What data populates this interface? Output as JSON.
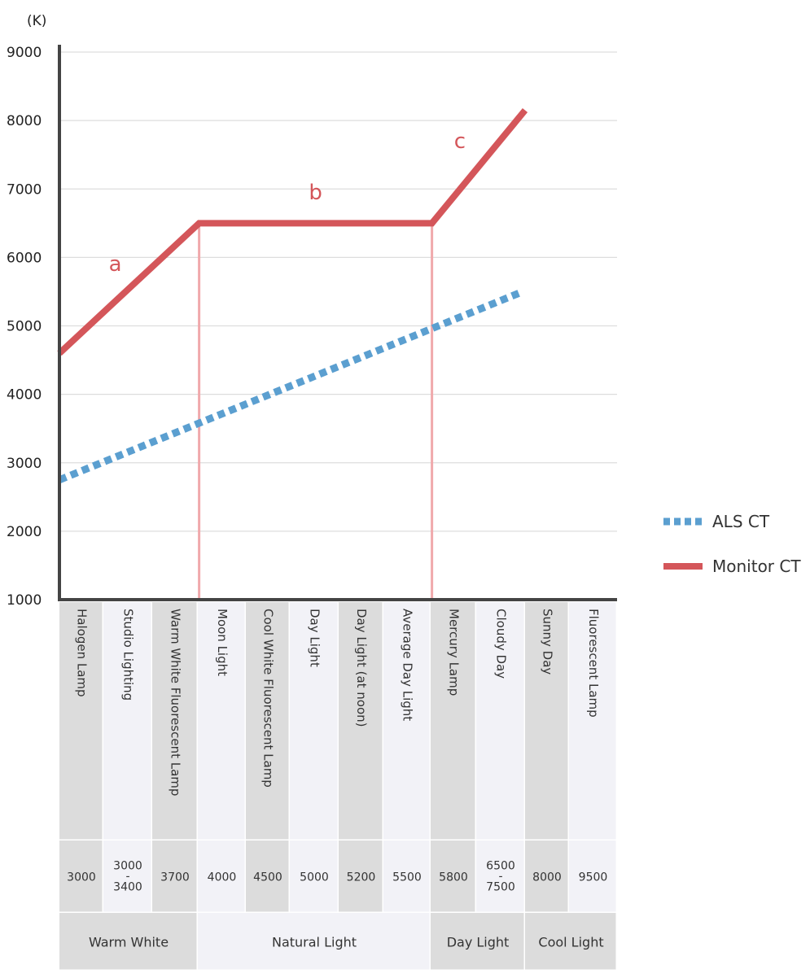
{
  "chart_data": {
    "type": "line",
    "y_unit": "(K)",
    "ylim": [
      1000,
      9000
    ],
    "yticks": [
      1000,
      2000,
      3000,
      4000,
      5000,
      6000,
      7000,
      8000,
      9000
    ],
    "grid": true,
    "legend_position": "right",
    "series": [
      {
        "name": "ALS CT",
        "style": "dotted",
        "color": "#5b9fd0",
        "points": [
          [
            0,
            2750
          ],
          [
            9.95,
            5500
          ]
        ]
      },
      {
        "name": "Monitor CT",
        "style": "solid",
        "color": "#d4565a",
        "points": [
          [
            0,
            4600
          ],
          [
            3,
            6500
          ],
          [
            8,
            6500
          ],
          [
            10,
            8150
          ]
        ]
      }
    ],
    "segment_labels": [
      {
        "text": "a",
        "x": 1.2,
        "y": 5800
      },
      {
        "text": "b",
        "x": 5.5,
        "y": 6850
      },
      {
        "text": "c",
        "x": 8.6,
        "y": 7600
      }
    ],
    "reference_lines": [
      3,
      8
    ],
    "light_sources": [
      {
        "name": "Halogen Lamp",
        "temp": [
          "3000"
        ]
      },
      {
        "name": "Studio Lighting",
        "temp": [
          "3000",
          "-",
          "3400"
        ]
      },
      {
        "name": "Warm White Fluorescent Lamp",
        "temp": [
          "3700"
        ]
      },
      {
        "name": "Moon Light",
        "temp": [
          "4000"
        ]
      },
      {
        "name": "Cool White Fluorescent Lamp",
        "temp": [
          "4500"
        ]
      },
      {
        "name": "Day Light",
        "temp": [
          "5000"
        ]
      },
      {
        "name": "Day Light (at noon)",
        "temp": [
          "5200"
        ]
      },
      {
        "name": "Average Day Light",
        "temp": [
          "5500"
        ]
      },
      {
        "name": "Mercury Lamp",
        "temp": [
          "5800"
        ]
      },
      {
        "name": "Cloudy Day",
        "temp": [
          "6500",
          "-",
          "7500"
        ]
      },
      {
        "name": "Sunny Day",
        "temp": [
          "8000"
        ]
      },
      {
        "name": "Fluorescent Lamp",
        "temp": [
          "9500"
        ]
      }
    ],
    "categories": [
      {
        "name": "Warm White",
        "span": [
          0,
          3
        ]
      },
      {
        "name": "Natural Light",
        "span": [
          3,
          8
        ]
      },
      {
        "name": "Day Light",
        "span": [
          8,
          10
        ]
      },
      {
        "name": "Cool Light",
        "span": [
          10,
          12
        ]
      }
    ]
  },
  "colors": {
    "axis": "#444444",
    "grid": "#dddddd",
    "reference_line": "#f0a9ac",
    "cell_dark": "#dcdcdc",
    "cell_light": "#f2f2f7"
  }
}
